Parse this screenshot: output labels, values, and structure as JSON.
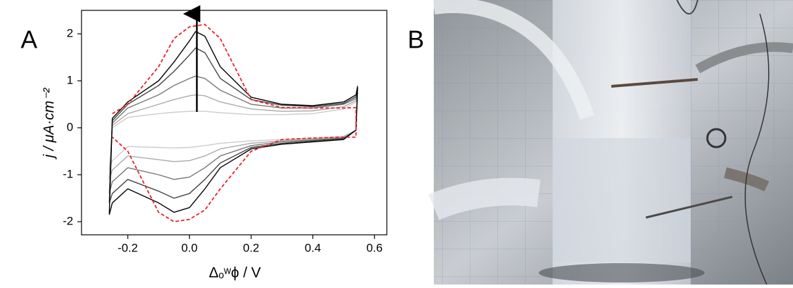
{
  "chart_data": {
    "type": "line",
    "panel_label": "A",
    "xlabel": "Δₒʷϕ / V",
    "ylabel": "j / μA·cm⁻²",
    "xlim": [
      -0.35,
      0.64
    ],
    "ylim": [
      -2.28,
      2.5
    ],
    "xticks": [
      -0.2,
      {
        "value": 0,
        "label": "0.0"
      },
      0.2,
      0.4,
      0.6
    ],
    "yticks": [
      -2,
      -1,
      0,
      1,
      2
    ],
    "grid": false,
    "series": [
      {
        "color": "#cccccc",
        "dashed": false,
        "x": [
          -0.26,
          -0.25,
          -0.2,
          -0.1,
          -0.05,
          0,
          0.02,
          0.05,
          0.1,
          0.2,
          0.3,
          0.4,
          0.5,
          0.54,
          0.545,
          0.54,
          0.5,
          0.4,
          0.3,
          0.2,
          0.1,
          0.05,
          0,
          -0.05,
          -0.1,
          -0.2,
          -0.25,
          -0.26
        ],
        "values": [
          -0.9,
          0.0,
          0.22,
          0.3,
          0.33,
          0.35,
          0.35,
          0.35,
          0.32,
          0.28,
          0.28,
          0.3,
          0.4,
          0.55,
          0.7,
          -0.05,
          -0.18,
          -0.22,
          -0.25,
          -0.28,
          -0.33,
          -0.38,
          -0.42,
          -0.43,
          -0.42,
          -0.4,
          -0.7,
          -0.9
        ]
      },
      {
        "color": "#aaaaaa",
        "dashed": false,
        "x": [
          -0.26,
          -0.25,
          -0.2,
          -0.1,
          -0.05,
          0,
          0.02,
          0.05,
          0.1,
          0.2,
          0.3,
          0.4,
          0.5,
          0.54,
          0.545,
          0.54,
          0.5,
          0.4,
          0.3,
          0.2,
          0.1,
          0.05,
          0,
          -0.05,
          -0.1,
          -0.2,
          -0.25,
          -0.26
        ],
        "values": [
          -1.1,
          0.05,
          0.3,
          0.5,
          0.6,
          0.68,
          0.7,
          0.68,
          0.55,
          0.4,
          0.35,
          0.36,
          0.45,
          0.58,
          0.75,
          -0.05,
          -0.2,
          -0.24,
          -0.28,
          -0.33,
          -0.45,
          -0.6,
          -0.7,
          -0.72,
          -0.68,
          -0.6,
          -0.9,
          -1.1
        ]
      },
      {
        "color": "#777777",
        "dashed": false,
        "x": [
          -0.26,
          -0.25,
          -0.2,
          -0.1,
          -0.05,
          0,
          0.02,
          0.05,
          0.1,
          0.2,
          0.3,
          0.4,
          0.5,
          0.54,
          0.545,
          0.54,
          0.5,
          0.4,
          0.3,
          0.2,
          0.1,
          0.05,
          0,
          -0.05,
          -0.1,
          -0.2,
          -0.25,
          -0.26
        ],
        "values": [
          -1.4,
          0.1,
          0.42,
          0.7,
          0.9,
          1.05,
          1.1,
          1.05,
          0.8,
          0.5,
          0.42,
          0.42,
          0.5,
          0.62,
          0.8,
          -0.05,
          -0.22,
          -0.26,
          -0.3,
          -0.38,
          -0.6,
          -0.85,
          -1.05,
          -1.1,
          -1.0,
          -0.85,
          -1.15,
          -1.4
        ]
      },
      {
        "color": "#444444",
        "dashed": false,
        "x": [
          -0.26,
          -0.25,
          -0.2,
          -0.1,
          -0.05,
          0,
          0.02,
          0.05,
          0.1,
          0.2,
          0.3,
          0.4,
          0.5,
          0.54,
          0.545,
          0.54,
          0.5,
          0.4,
          0.3,
          0.2,
          0.1,
          0.05,
          0,
          -0.05,
          -0.1,
          -0.2,
          -0.25,
          -0.26
        ],
        "values": [
          -1.6,
          0.15,
          0.5,
          0.9,
          1.2,
          1.55,
          1.7,
          1.6,
          1.05,
          0.6,
          0.48,
          0.45,
          0.52,
          0.66,
          0.85,
          -0.05,
          -0.23,
          -0.28,
          -0.33,
          -0.42,
          -0.75,
          -1.1,
          -1.4,
          -1.5,
          -1.35,
          -1.1,
          -1.4,
          -1.6
        ]
      },
      {
        "color": "#000000",
        "dashed": false,
        "x": [
          -0.26,
          -0.25,
          -0.2,
          -0.1,
          -0.05,
          0,
          0.02,
          0.05,
          0.1,
          0.2,
          0.3,
          0.4,
          0.5,
          0.54,
          0.545,
          0.54,
          0.5,
          0.4,
          0.3,
          0.2,
          0.1,
          0.05,
          0,
          -0.05,
          -0.1,
          -0.2,
          -0.25,
          -0.26
        ],
        "values": [
          -1.85,
          0.2,
          0.55,
          1.0,
          1.4,
          1.85,
          2.05,
          1.95,
          1.3,
          0.65,
          0.5,
          0.47,
          0.55,
          0.7,
          0.88,
          -0.05,
          -0.25,
          -0.3,
          -0.35,
          -0.45,
          -0.85,
          -1.3,
          -1.7,
          -1.8,
          -1.6,
          -1.3,
          -1.6,
          -1.85
        ]
      },
      {
        "color": "#e8202a",
        "dashed": true,
        "x": [
          -0.25,
          -0.2,
          -0.1,
          -0.05,
          0,
          0.05,
          0.1,
          0.2,
          0.3,
          0.4,
          0.5,
          0.54,
          0.54,
          0.5,
          0.4,
          0.3,
          0.2,
          0.1,
          0.05,
          0,
          -0.05,
          -0.1,
          -0.2,
          -0.25
        ],
        "values": [
          0.3,
          0.5,
          1.3,
          1.9,
          2.15,
          2.2,
          1.9,
          0.6,
          0.43,
          0.42,
          0.42,
          0.43,
          -0.2,
          -0.2,
          -0.22,
          -0.25,
          -0.5,
          -1.3,
          -1.75,
          -1.95,
          -2.0,
          -1.8,
          -0.5,
          -0.2
        ]
      }
    ]
  },
  "photo": {
    "panel_label": "B"
  }
}
